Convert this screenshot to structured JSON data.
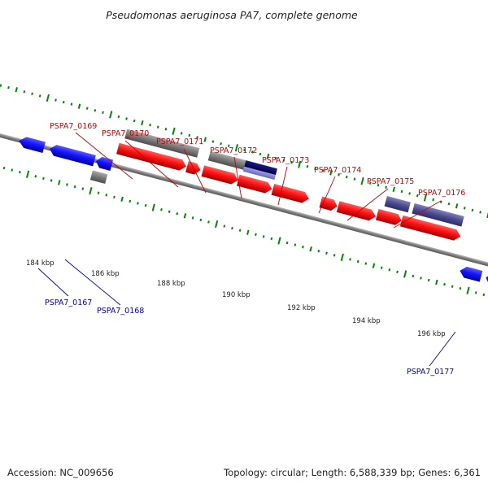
{
  "title": "Pseudomonas aeruginosa PA7, complete genome",
  "footer": {
    "accession": "Accession: NC_009656",
    "topology": "Topology: circular; Length: 6,588,339 bp; Genes: 6,361"
  },
  "colors": {
    "forward_label": "#cc0000",
    "reverse_label": "#0000bb",
    "tick": "#008800",
    "backbone": "#888888",
    "gene_red": "#ff1515",
    "gene_blue": "#1818ff",
    "gene_gray": "#7b7b7b",
    "gene_purple": "#4a4a8e",
    "gene_navy": "#0a0a6a"
  },
  "scale_labels": [
    "184 kbp",
    "186 kbp",
    "188 kbp",
    "190 kbp",
    "192 kbp",
    "194 kbp",
    "196 kbp"
  ],
  "gene_labels": {
    "forward": [
      "PSPA7_0169",
      "PSPA7_0170",
      "PSPA7_0171",
      "PSPA7_0172",
      "PSPA7_0173",
      "PSPA7_0174",
      "PSPA7_0175",
      "PSPA7_0176"
    ],
    "reverse": [
      "PSPA7_0167",
      "PSPA7_0168",
      "PSPA7_0177"
    ]
  }
}
